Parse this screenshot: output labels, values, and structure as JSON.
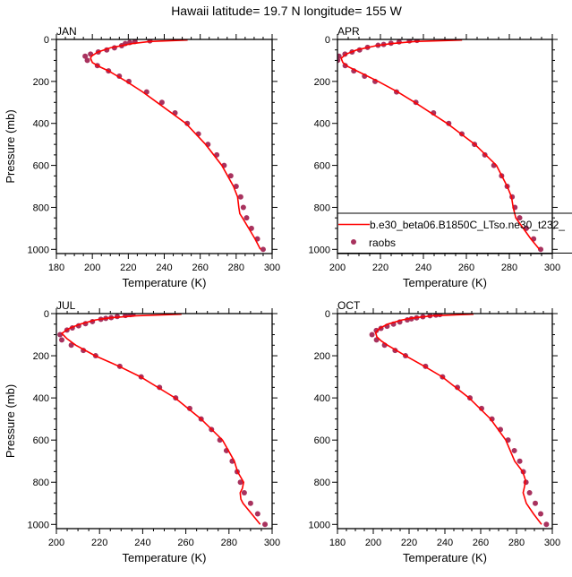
{
  "title": "Hawaii  latitude= 19.7 N longitude= 155 W",
  "colors": {
    "model": "#ff0000",
    "obs": "#a8325e",
    "axis": "#000000"
  },
  "legend": {
    "placement": "inside-bottom of APR panel",
    "panel": 1,
    "entries": [
      {
        "label": "b.e30_beta06.B1850C_LTso.ne30_t232_",
        "style": "line"
      },
      {
        "label": "raobs",
        "style": "marker"
      }
    ]
  },
  "chart_data": [
    {
      "type": "line",
      "title": "JAN",
      "xlabel": "Temperature (K)",
      "ylabel": "Pressure (mb)",
      "xlim": [
        180,
        300
      ],
      "ylim": [
        1020,
        0
      ],
      "y_reversed": true,
      "xticks": [
        180,
        200,
        220,
        240,
        260,
        280,
        300
      ],
      "yticks": [
        0,
        200,
        400,
        600,
        800,
        1000
      ],
      "model": [
        [
          3,
          253
        ],
        [
          10,
          232
        ],
        [
          20,
          222
        ],
        [
          40,
          210
        ],
        [
          60,
          203
        ],
        [
          80,
          199.5
        ],
        [
          90,
          199
        ],
        [
          110,
          200
        ],
        [
          130,
          204
        ],
        [
          150,
          209
        ],
        [
          200,
          219
        ],
        [
          250,
          228
        ],
        [
          300,
          236
        ],
        [
          400,
          252
        ],
        [
          500,
          263
        ],
        [
          600,
          272
        ],
        [
          700,
          278.5
        ],
        [
          750,
          280.8
        ],
        [
          800,
          281.5
        ],
        [
          830,
          282
        ],
        [
          850,
          283.5
        ],
        [
          900,
          287
        ],
        [
          950,
          290.5
        ],
        [
          1000,
          293.5
        ]
      ],
      "raobs": [
        [
          7,
          232
        ],
        [
          10,
          223.7
        ],
        [
          15,
          220.8
        ],
        [
          20,
          218.3
        ],
        [
          30,
          216.3
        ],
        [
          40,
          212.3
        ],
        [
          50,
          208
        ],
        [
          60,
          203.3
        ],
        [
          70,
          199
        ],
        [
          80,
          196
        ],
        [
          100,
          197.2
        ],
        [
          125,
          202.8
        ],
        [
          150,
          209
        ],
        [
          175,
          215
        ],
        [
          200,
          220.3
        ],
        [
          250,
          230.2
        ],
        [
          300,
          238.7
        ],
        [
          350,
          246
        ],
        [
          400,
          252.8
        ],
        [
          450,
          259
        ],
        [
          500,
          264.3
        ],
        [
          550,
          269.2
        ],
        [
          600,
          273.3
        ],
        [
          650,
          277
        ],
        [
          700,
          280
        ],
        [
          750,
          282.5
        ],
        [
          800,
          284
        ],
        [
          850,
          285.8
        ],
        [
          900,
          288.5
        ],
        [
          950,
          291.8
        ],
        [
          1000,
          295
        ]
      ]
    },
    {
      "type": "line",
      "title": "APR",
      "xlabel": "Temperature (K)",
      "ylabel": "",
      "xlim": [
        200,
        300
      ],
      "ylim": [
        1020,
        0
      ],
      "y_reversed": true,
      "xticks": [
        200,
        220,
        240,
        260,
        280,
        300
      ],
      "yticks": [
        0,
        200,
        400,
        600,
        800,
        1000
      ],
      "model": [
        [
          3,
          258
        ],
        [
          10,
          236
        ],
        [
          20,
          225
        ],
        [
          30,
          218
        ],
        [
          50,
          209
        ],
        [
          70,
          204
        ],
        [
          90,
          201.7
        ],
        [
          110,
          202.5
        ],
        [
          130,
          205
        ],
        [
          150,
          209
        ],
        [
          200,
          219
        ],
        [
          250,
          228
        ],
        [
          300,
          236
        ],
        [
          400,
          251
        ],
        [
          500,
          264
        ],
        [
          600,
          274
        ],
        [
          700,
          279
        ],
        [
          750,
          281
        ],
        [
          800,
          281.8
        ],
        [
          850,
          283
        ],
        [
          900,
          286.5
        ],
        [
          950,
          290
        ],
        [
          1000,
          294
        ]
      ],
      "raobs": [
        [
          5,
          237
        ],
        [
          7,
          233.5
        ],
        [
          12,
          228.7
        ],
        [
          18,
          224.9
        ],
        [
          24,
          221.5
        ],
        [
          28,
          218.9
        ],
        [
          38,
          214
        ],
        [
          50,
          210.3
        ],
        [
          60,
          206.8
        ],
        [
          70,
          203.5
        ],
        [
          80,
          200.7
        ],
        [
          100,
          200.1
        ],
        [
          125,
          203.6
        ],
        [
          150,
          207.6
        ],
        [
          175,
          212.6
        ],
        [
          200,
          217.5
        ],
        [
          250,
          227.5
        ],
        [
          300,
          236.5
        ],
        [
          350,
          244.7
        ],
        [
          400,
          251.8
        ],
        [
          450,
          257.9
        ],
        [
          500,
          263.8
        ],
        [
          550,
          268.6
        ],
        [
          600,
          272.8
        ],
        [
          650,
          276.4
        ],
        [
          700,
          279
        ],
        [
          750,
          281.3
        ],
        [
          800,
          282.6
        ],
        [
          850,
          284.8
        ],
        [
          900,
          287.9
        ],
        [
          950,
          291.3
        ],
        [
          1000,
          294.6
        ]
      ]
    },
    {
      "type": "line",
      "title": "JUL",
      "xlabel": "Temperature (K)",
      "ylabel": "Pressure (mb)",
      "xlim": [
        200,
        300
      ],
      "ylim": [
        1020,
        0
      ],
      "y_reversed": true,
      "xticks": [
        200,
        220,
        240,
        260,
        280,
        300
      ],
      "yticks": [
        0,
        200,
        400,
        600,
        800,
        1000
      ],
      "model": [
        [
          3,
          258
        ],
        [
          10,
          237
        ],
        [
          20,
          225
        ],
        [
          30,
          218
        ],
        [
          50,
          211
        ],
        [
          70,
          206
        ],
        [
          94,
          202.5
        ],
        [
          120,
          205
        ],
        [
          150,
          209
        ],
        [
          200,
          218
        ],
        [
          250,
          229
        ],
        [
          300,
          239
        ],
        [
          400,
          255
        ],
        [
          500,
          267
        ],
        [
          600,
          277
        ],
        [
          700,
          282.5
        ],
        [
          750,
          284
        ],
        [
          800,
          286.8
        ],
        [
          830,
          286.2
        ],
        [
          850,
          285.2
        ],
        [
          880,
          285.5
        ],
        [
          900,
          286.5
        ],
        [
          950,
          290.5
        ],
        [
          1000,
          294.5
        ]
      ],
      "raobs": [
        [
          3,
          235.5
        ],
        [
          5,
          234.4
        ],
        [
          9,
          232
        ],
        [
          14,
          228.2
        ],
        [
          19,
          225.4
        ],
        [
          23,
          222.9
        ],
        [
          27,
          220.6
        ],
        [
          38,
          216.7
        ],
        [
          48,
          213.5
        ],
        [
          58,
          210.3
        ],
        [
          68,
          207.4
        ],
        [
          78,
          204.9
        ],
        [
          100,
          201.7
        ],
        [
          125,
          202.5
        ],
        [
          150,
          206.9
        ],
        [
          175,
          212.5
        ],
        [
          200,
          218.2
        ],
        [
          250,
          229.4
        ],
        [
          300,
          239.3
        ],
        [
          350,
          247.8
        ],
        [
          400,
          255.3
        ],
        [
          450,
          261.8
        ],
        [
          500,
          267.1
        ],
        [
          550,
          271.9
        ],
        [
          600,
          275.8
        ],
        [
          650,
          278.8
        ],
        [
          700,
          281.5
        ],
        [
          750,
          283.8
        ],
        [
          800,
          285.3
        ],
        [
          850,
          287.1
        ],
        [
          900,
          290
        ],
        [
          950,
          293.3
        ],
        [
          1000,
          296.7
        ]
      ]
    },
    {
      "type": "line",
      "title": "OCT",
      "xlabel": "Temperature (K)",
      "ylabel": "",
      "xlim": [
        180,
        300
      ],
      "ylim": [
        1020,
        0
      ],
      "y_reversed": true,
      "xticks": [
        180,
        200,
        220,
        240,
        260,
        280,
        300
      ],
      "yticks": [
        0,
        200,
        400,
        600,
        800,
        1000
      ],
      "model": [
        [
          3,
          256
        ],
        [
          10,
          233
        ],
        [
          20,
          223
        ],
        [
          30,
          216
        ],
        [
          50,
          208
        ],
        [
          70,
          203.5
        ],
        [
          90,
          201.3
        ],
        [
          110,
          202
        ],
        [
          130,
          204.5
        ],
        [
          150,
          208
        ],
        [
          200,
          218
        ],
        [
          250,
          228.5
        ],
        [
          300,
          238.5
        ],
        [
          400,
          253.5
        ],
        [
          500,
          265.5
        ],
        [
          600,
          274
        ],
        [
          700,
          279
        ],
        [
          750,
          283.5
        ],
        [
          790,
          285
        ],
        [
          820,
          284.5
        ],
        [
          850,
          283.7
        ],
        [
          900,
          285.5
        ],
        [
          950,
          289.5
        ],
        [
          1000,
          294
        ]
      ],
      "raobs": [
        [
          5,
          237.2
        ],
        [
          7,
          235
        ],
        [
          10,
          231.7
        ],
        [
          15,
          227.7
        ],
        [
          20,
          224.2
        ],
        [
          25,
          221.3
        ],
        [
          30,
          219
        ],
        [
          40,
          214.8
        ],
        [
          50,
          211.3
        ],
        [
          60,
          207.7
        ],
        [
          70,
          204.3
        ],
        [
          80,
          201.7
        ],
        [
          100,
          199.3
        ],
        [
          125,
          201.8
        ],
        [
          150,
          206.3
        ],
        [
          175,
          212.2
        ],
        [
          200,
          218
        ],
        [
          250,
          229.2
        ],
        [
          300,
          238.7
        ],
        [
          350,
          247
        ],
        [
          400,
          254
        ],
        [
          450,
          260.5
        ],
        [
          500,
          266.3
        ],
        [
          550,
          271
        ],
        [
          600,
          275.3
        ],
        [
          650,
          278.8
        ],
        [
          700,
          281.8
        ],
        [
          750,
          283.8
        ],
        [
          800,
          285.3
        ],
        [
          850,
          287.3
        ],
        [
          900,
          290.5
        ],
        [
          950,
          293.5
        ],
        [
          1000,
          296.7
        ]
      ]
    }
  ]
}
